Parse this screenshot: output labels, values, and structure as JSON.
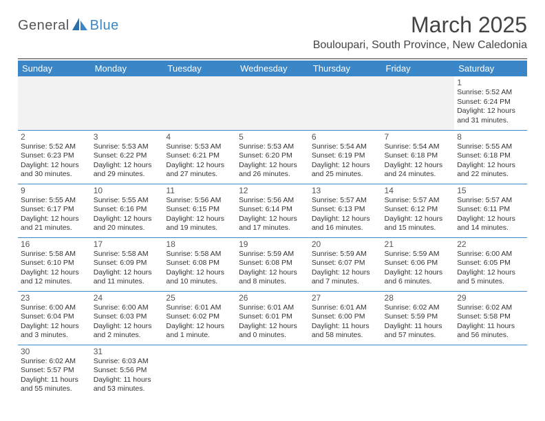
{
  "logo": {
    "text_a": "General",
    "text_b": "Blue",
    "icon_color": "#3b86c7"
  },
  "title": "March 2025",
  "location": "Bouloupari, South Province, New Caledonia",
  "colors": {
    "header_bg": "#3b86c7",
    "header_fg": "#ffffff",
    "border": "#3b86c7",
    "blank_bg": "#f2f2f2"
  },
  "weekdays": [
    "Sunday",
    "Monday",
    "Tuesday",
    "Wednesday",
    "Thursday",
    "Friday",
    "Saturday"
  ],
  "weeks": [
    [
      null,
      null,
      null,
      null,
      null,
      null,
      {
        "n": "1",
        "sr": "5:52 AM",
        "ss": "6:24 PM",
        "dl": "12 hours and 31 minutes."
      }
    ],
    [
      {
        "n": "2",
        "sr": "5:52 AM",
        "ss": "6:23 PM",
        "dl": "12 hours and 30 minutes."
      },
      {
        "n": "3",
        "sr": "5:53 AM",
        "ss": "6:22 PM",
        "dl": "12 hours and 29 minutes."
      },
      {
        "n": "4",
        "sr": "5:53 AM",
        "ss": "6:21 PM",
        "dl": "12 hours and 27 minutes."
      },
      {
        "n": "5",
        "sr": "5:53 AM",
        "ss": "6:20 PM",
        "dl": "12 hours and 26 minutes."
      },
      {
        "n": "6",
        "sr": "5:54 AM",
        "ss": "6:19 PM",
        "dl": "12 hours and 25 minutes."
      },
      {
        "n": "7",
        "sr": "5:54 AM",
        "ss": "6:18 PM",
        "dl": "12 hours and 24 minutes."
      },
      {
        "n": "8",
        "sr": "5:55 AM",
        "ss": "6:18 PM",
        "dl": "12 hours and 22 minutes."
      }
    ],
    [
      {
        "n": "9",
        "sr": "5:55 AM",
        "ss": "6:17 PM",
        "dl": "12 hours and 21 minutes."
      },
      {
        "n": "10",
        "sr": "5:55 AM",
        "ss": "6:16 PM",
        "dl": "12 hours and 20 minutes."
      },
      {
        "n": "11",
        "sr": "5:56 AM",
        "ss": "6:15 PM",
        "dl": "12 hours and 19 minutes."
      },
      {
        "n": "12",
        "sr": "5:56 AM",
        "ss": "6:14 PM",
        "dl": "12 hours and 17 minutes."
      },
      {
        "n": "13",
        "sr": "5:57 AM",
        "ss": "6:13 PM",
        "dl": "12 hours and 16 minutes."
      },
      {
        "n": "14",
        "sr": "5:57 AM",
        "ss": "6:12 PM",
        "dl": "12 hours and 15 minutes."
      },
      {
        "n": "15",
        "sr": "5:57 AM",
        "ss": "6:11 PM",
        "dl": "12 hours and 14 minutes."
      }
    ],
    [
      {
        "n": "16",
        "sr": "5:58 AM",
        "ss": "6:10 PM",
        "dl": "12 hours and 12 minutes."
      },
      {
        "n": "17",
        "sr": "5:58 AM",
        "ss": "6:09 PM",
        "dl": "12 hours and 11 minutes."
      },
      {
        "n": "18",
        "sr": "5:58 AM",
        "ss": "6:08 PM",
        "dl": "12 hours and 10 minutes."
      },
      {
        "n": "19",
        "sr": "5:59 AM",
        "ss": "6:08 PM",
        "dl": "12 hours and 8 minutes."
      },
      {
        "n": "20",
        "sr": "5:59 AM",
        "ss": "6:07 PM",
        "dl": "12 hours and 7 minutes."
      },
      {
        "n": "21",
        "sr": "5:59 AM",
        "ss": "6:06 PM",
        "dl": "12 hours and 6 minutes."
      },
      {
        "n": "22",
        "sr": "6:00 AM",
        "ss": "6:05 PM",
        "dl": "12 hours and 5 minutes."
      }
    ],
    [
      {
        "n": "23",
        "sr": "6:00 AM",
        "ss": "6:04 PM",
        "dl": "12 hours and 3 minutes."
      },
      {
        "n": "24",
        "sr": "6:00 AM",
        "ss": "6:03 PM",
        "dl": "12 hours and 2 minutes."
      },
      {
        "n": "25",
        "sr": "6:01 AM",
        "ss": "6:02 PM",
        "dl": "12 hours and 1 minute."
      },
      {
        "n": "26",
        "sr": "6:01 AM",
        "ss": "6:01 PM",
        "dl": "12 hours and 0 minutes."
      },
      {
        "n": "27",
        "sr": "6:01 AM",
        "ss": "6:00 PM",
        "dl": "11 hours and 58 minutes."
      },
      {
        "n": "28",
        "sr": "6:02 AM",
        "ss": "5:59 PM",
        "dl": "11 hours and 57 minutes."
      },
      {
        "n": "29",
        "sr": "6:02 AM",
        "ss": "5:58 PM",
        "dl": "11 hours and 56 minutes."
      }
    ],
    [
      {
        "n": "30",
        "sr": "6:02 AM",
        "ss": "5:57 PM",
        "dl": "11 hours and 55 minutes."
      },
      {
        "n": "31",
        "sr": "6:03 AM",
        "ss": "5:56 PM",
        "dl": "11 hours and 53 minutes."
      },
      null,
      null,
      null,
      null,
      null
    ]
  ],
  "labels": {
    "sunrise": "Sunrise:",
    "sunset": "Sunset:",
    "daylight": "Daylight:"
  }
}
